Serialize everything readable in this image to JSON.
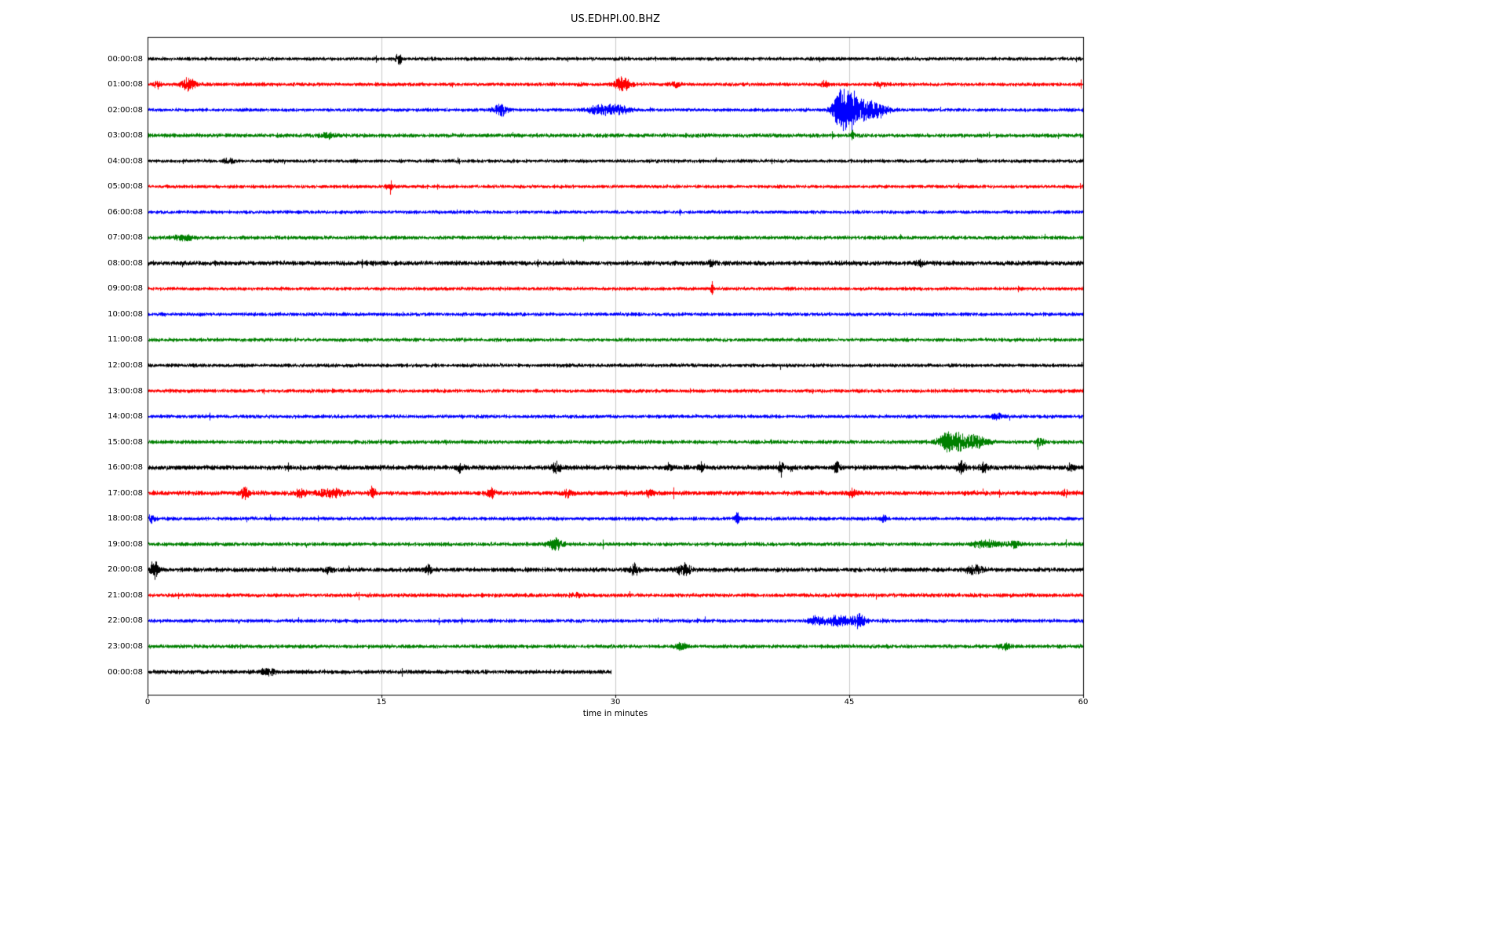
{
  "title": "US.EDHPI.00.BHZ",
  "chart_data": {
    "type": "line",
    "subtype": "seismogram-helicorder-dayplot",
    "title": "US.EDHPI.00.BHZ",
    "xlabel": "time in minutes",
    "x_range": [
      0,
      60
    ],
    "x_ticks": [
      "0",
      "15",
      "30",
      "45",
      "60"
    ],
    "x_tick_values": [
      0,
      15,
      30,
      45,
      60
    ],
    "grid_x": [
      15,
      30,
      45
    ],
    "grid_color": "#c8c8c8",
    "frame_color": "#000000",
    "colors_cycle": [
      "#000000",
      "#ff0000",
      "#0000ff",
      "#008000"
    ],
    "rows": [
      {
        "label": "00:00:08",
        "color": "#000000",
        "noise": 1.8,
        "end": 60,
        "events": [
          {
            "t": 15.95,
            "amp": 4,
            "dur": 0.06
          },
          {
            "t": 16.15,
            "amp": 6,
            "dur": 0.08
          }
        ]
      },
      {
        "label": "01:00:08",
        "color": "#ff0000",
        "noise": 1.8,
        "end": 60,
        "events": [
          {
            "t": 0.6,
            "amp": 3,
            "dur": 0.15
          },
          {
            "t": 2.6,
            "amp": 6,
            "dur": 0.3
          },
          {
            "t": 30.4,
            "amp": 7,
            "dur": 0.35
          },
          {
            "t": 33.8,
            "amp": 2.5,
            "dur": 0.2
          },
          {
            "t": 43.4,
            "amp": 2.5,
            "dur": 0.2
          },
          {
            "t": 47.0,
            "amp": 2.2,
            "dur": 0.2
          }
        ]
      },
      {
        "label": "02:00:08",
        "color": "#0000ff",
        "noise": 1.7,
        "end": 60,
        "events": [
          {
            "t": 22.6,
            "amp": 4.5,
            "dur": 0.35
          },
          {
            "t": 29.2,
            "amp": 4,
            "dur": 0.7
          },
          {
            "t": 30.3,
            "amp": 3,
            "dur": 0.4
          },
          {
            "t": 44.3,
            "amp": 7,
            "dur": 0.25
          },
          {
            "t": 44.75,
            "amp": 15,
            "dur": 0.45
          },
          {
            "t": 45.6,
            "amp": 9,
            "dur": 0.8
          },
          {
            "t": 46.8,
            "amp": 4,
            "dur": 0.5
          }
        ]
      },
      {
        "label": "03:00:08",
        "color": "#008000",
        "noise": 2.0,
        "end": 60,
        "events": [
          {
            "t": 11.5,
            "amp": 2,
            "dur": 0.3
          },
          {
            "t": 45.2,
            "amp": 5,
            "dur": 0.07
          }
        ]
      },
      {
        "label": "04:00:08",
        "color": "#000000",
        "noise": 1.7,
        "end": 60,
        "events": [
          {
            "t": 5.2,
            "amp": 2,
            "dur": 0.25
          }
        ]
      },
      {
        "label": "05:00:08",
        "color": "#ff0000",
        "noise": 1.7,
        "end": 60,
        "events": [
          {
            "t": 15.5,
            "amp": 2,
            "dur": 0.25
          }
        ]
      },
      {
        "label": "06:00:08",
        "color": "#0000ff",
        "noise": 1.7,
        "end": 60,
        "events": []
      },
      {
        "label": "07:00:08",
        "color": "#008000",
        "noise": 1.9,
        "end": 60,
        "events": [
          {
            "t": 2.2,
            "amp": 2.2,
            "dur": 0.4
          }
        ]
      },
      {
        "label": "08:00:08",
        "color": "#000000",
        "noise": 2.3,
        "end": 60,
        "events": [
          {
            "t": 36.1,
            "amp": 2.5,
            "dur": 0.15
          },
          {
            "t": 49.5,
            "amp": 2.5,
            "dur": 0.2
          }
        ]
      },
      {
        "label": "09:00:08",
        "color": "#ff0000",
        "noise": 1.7,
        "end": 60,
        "events": [
          {
            "t": 36.2,
            "amp": 7,
            "dur": 0.06
          }
        ]
      },
      {
        "label": "10:00:08",
        "color": "#0000ff",
        "noise": 1.8,
        "end": 60,
        "events": []
      },
      {
        "label": "11:00:08",
        "color": "#008000",
        "noise": 1.8,
        "end": 60,
        "events": []
      },
      {
        "label": "12:00:08",
        "color": "#000000",
        "noise": 1.8,
        "end": 60,
        "events": []
      },
      {
        "label": "13:00:08",
        "color": "#ff0000",
        "noise": 1.8,
        "end": 60,
        "events": []
      },
      {
        "label": "14:00:08",
        "color": "#0000ff",
        "noise": 1.8,
        "end": 60,
        "events": [
          {
            "t": 54.5,
            "amp": 2,
            "dur": 0.3
          }
        ]
      },
      {
        "label": "15:00:08",
        "color": "#008000",
        "noise": 1.9,
        "end": 60,
        "events": [
          {
            "t": 51.3,
            "amp": 7,
            "dur": 0.45
          },
          {
            "t": 52.3,
            "amp": 6,
            "dur": 0.6
          },
          {
            "t": 53.3,
            "amp": 4,
            "dur": 0.4
          },
          {
            "t": 57.2,
            "amp": 3,
            "dur": 0.25
          }
        ]
      },
      {
        "label": "16:00:08",
        "color": "#000000",
        "noise": 2.4,
        "end": 60,
        "events": [
          {
            "t": 20.0,
            "amp": 4,
            "dur": 0.12
          },
          {
            "t": 26.2,
            "amp": 4,
            "dur": 0.2
          },
          {
            "t": 33.4,
            "amp": 3.5,
            "dur": 0.15
          },
          {
            "t": 35.5,
            "amp": 3,
            "dur": 0.15
          },
          {
            "t": 40.6,
            "amp": 7,
            "dur": 0.1
          },
          {
            "t": 44.2,
            "amp": 4,
            "dur": 0.15
          },
          {
            "t": 52.2,
            "amp": 5,
            "dur": 0.18
          },
          {
            "t": 53.6,
            "amp": 4,
            "dur": 0.15
          },
          {
            "t": 59.2,
            "amp": 3,
            "dur": 0.15
          }
        ]
      },
      {
        "label": "17:00:08",
        "color": "#ff0000",
        "noise": 2.2,
        "end": 60,
        "events": [
          {
            "t": 6.2,
            "amp": 5,
            "dur": 0.2
          },
          {
            "t": 9.8,
            "amp": 3,
            "dur": 0.3
          },
          {
            "t": 11.7,
            "amp": 3.5,
            "dur": 0.6
          },
          {
            "t": 14.4,
            "amp": 5,
            "dur": 0.12
          },
          {
            "t": 22.0,
            "amp": 3.5,
            "dur": 0.2
          },
          {
            "t": 26.9,
            "amp": 3,
            "dur": 0.2
          },
          {
            "t": 32.2,
            "amp": 3.5,
            "dur": 0.18
          },
          {
            "t": 45.2,
            "amp": 3.5,
            "dur": 0.2
          },
          {
            "t": 58.8,
            "amp": 3,
            "dur": 0.15
          }
        ]
      },
      {
        "label": "18:00:08",
        "color": "#0000ff",
        "noise": 1.8,
        "end": 60,
        "events": [
          {
            "t": 0.2,
            "amp": 4,
            "dur": 0.2
          },
          {
            "t": 37.8,
            "amp": 6,
            "dur": 0.08
          },
          {
            "t": 47.2,
            "amp": 3.5,
            "dur": 0.12
          }
        ]
      },
      {
        "label": "19:00:08",
        "color": "#008000",
        "noise": 1.9,
        "end": 60,
        "events": [
          {
            "t": 26.1,
            "amp": 5,
            "dur": 0.3
          },
          {
            "t": 53.8,
            "amp": 3,
            "dur": 0.6
          },
          {
            "t": 55.6,
            "amp": 3,
            "dur": 0.3
          }
        ]
      },
      {
        "label": "20:00:08",
        "color": "#000000",
        "noise": 2.2,
        "end": 60,
        "events": [
          {
            "t": 0.4,
            "amp": 8,
            "dur": 0.2
          },
          {
            "t": 11.6,
            "amp": 3.5,
            "dur": 0.2
          },
          {
            "t": 18.0,
            "amp": 3,
            "dur": 0.2
          },
          {
            "t": 31.2,
            "amp": 5,
            "dur": 0.2
          },
          {
            "t": 34.4,
            "amp": 5,
            "dur": 0.3
          },
          {
            "t": 53.0,
            "amp": 3.5,
            "dur": 0.4
          }
        ]
      },
      {
        "label": "21:00:08",
        "color": "#ff0000",
        "noise": 1.9,
        "end": 60,
        "events": [
          {
            "t": 27.5,
            "amp": 2,
            "dur": 0.25
          }
        ]
      },
      {
        "label": "22:00:08",
        "color": "#0000ff",
        "noise": 1.8,
        "end": 60,
        "events": [
          {
            "t": 42.9,
            "amp": 3.5,
            "dur": 0.4
          },
          {
            "t": 44.3,
            "amp": 4.5,
            "dur": 0.5
          },
          {
            "t": 45.6,
            "amp": 6,
            "dur": 0.3
          }
        ]
      },
      {
        "label": "23:00:08",
        "color": "#008000",
        "noise": 1.9,
        "end": 60,
        "events": [
          {
            "t": 34.2,
            "amp": 3,
            "dur": 0.25
          },
          {
            "t": 55.0,
            "amp": 2.5,
            "dur": 0.3
          }
        ]
      },
      {
        "label": "00:00:08",
        "color": "#000000",
        "noise": 2.0,
        "end": 29.7,
        "events": [
          {
            "t": 7.7,
            "amp": 3,
            "dur": 0.3
          }
        ]
      }
    ]
  }
}
